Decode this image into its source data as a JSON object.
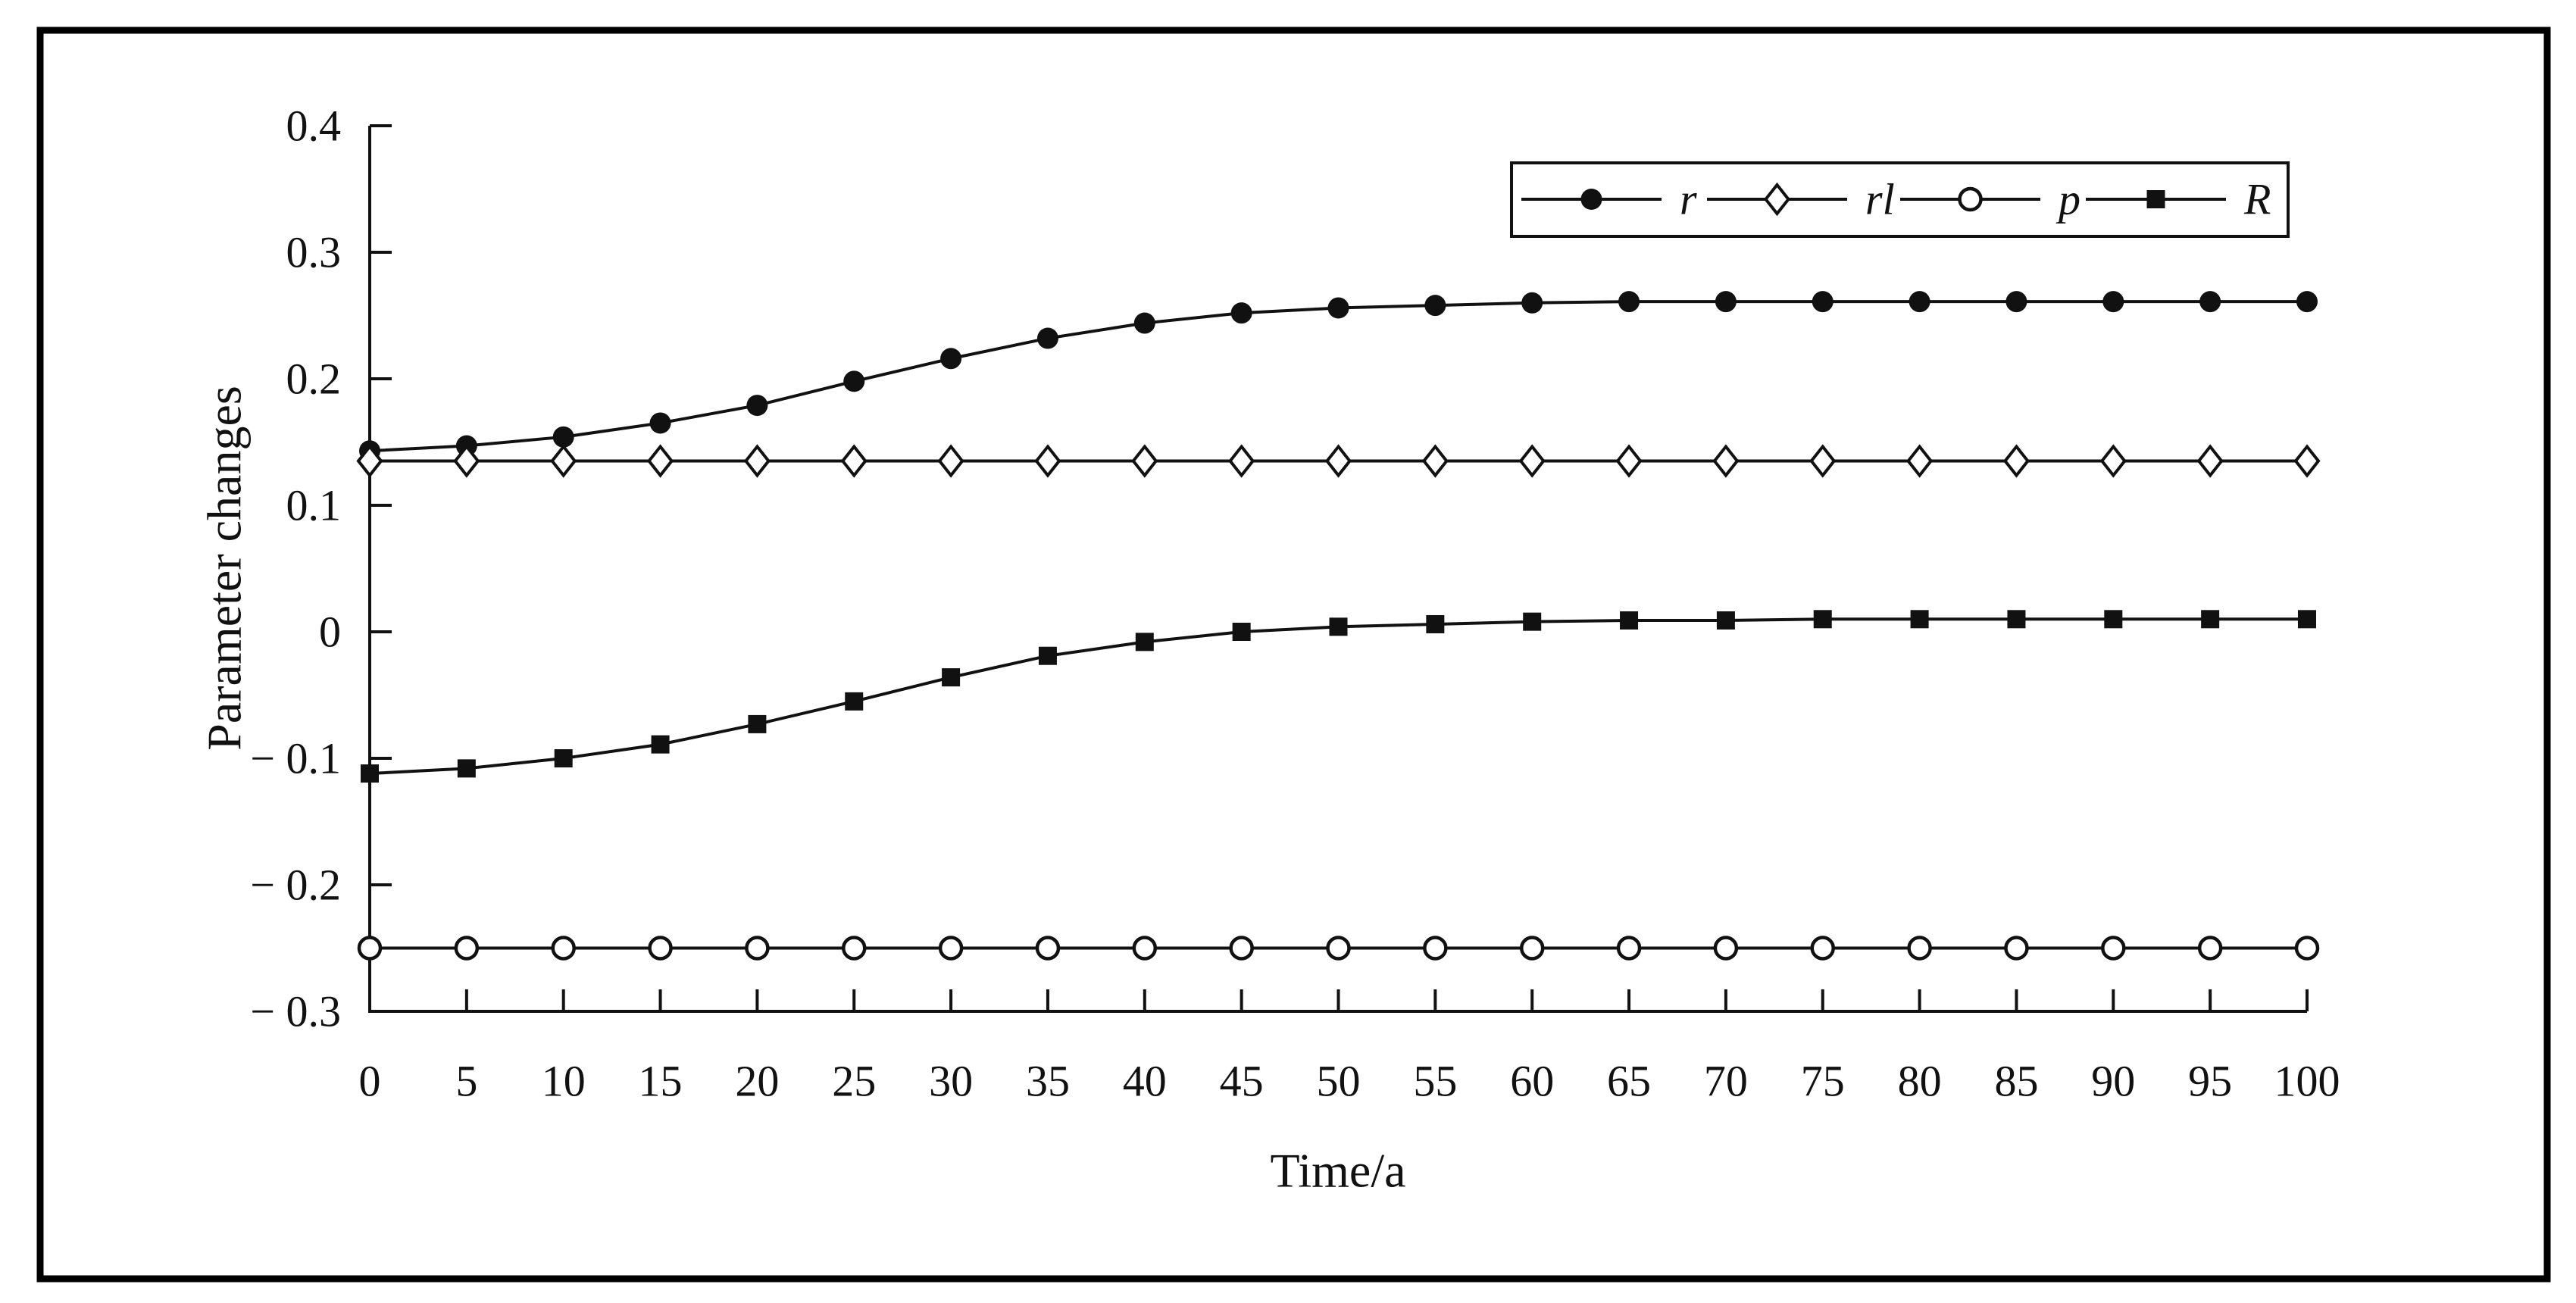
{
  "figure": {
    "background": "#ffffff",
    "border_color": "#000000",
    "ink_color": "#111111"
  },
  "chart_data": {
    "type": "line",
    "title": "",
    "xlabel": "Time/a",
    "ylabel": "Parameter changes",
    "xlim": [
      0,
      100
    ],
    "ylim": [
      -0.3,
      0.4
    ],
    "grid": false,
    "legend_position": "top-right-inside",
    "legend_border": true,
    "x_ticks": [
      0,
      5,
      10,
      15,
      20,
      25,
      30,
      35,
      40,
      45,
      50,
      55,
      60,
      65,
      70,
      75,
      80,
      85,
      90,
      95,
      100
    ],
    "x_tick_labels": [
      "0",
      "5",
      "10",
      "15",
      "20",
      "25",
      "30",
      "35",
      "40",
      "45",
      "50",
      "55",
      "60",
      "65",
      "70",
      "75",
      "80",
      "85",
      "90",
      "95",
      "100"
    ],
    "y_ticks": [
      0.4,
      0.3,
      0.2,
      0.1,
      0,
      -0.1,
      -0.2,
      -0.3
    ],
    "y_tick_labels": [
      "0.4",
      "0.3",
      "0.2",
      "0.1",
      "0",
      "− 0.1",
      "− 0.2",
      "− 0.3"
    ],
    "x": [
      0,
      5,
      10,
      15,
      20,
      25,
      30,
      35,
      40,
      45,
      50,
      55,
      60,
      65,
      70,
      75,
      80,
      85,
      90,
      95,
      100
    ],
    "series": [
      {
        "name": "r",
        "marker": "filled-circle",
        "values": [
          0.143,
          0.147,
          0.154,
          0.165,
          0.179,
          0.198,
          0.216,
          0.232,
          0.244,
          0.252,
          0.256,
          0.258,
          0.26,
          0.261,
          0.261,
          0.261,
          0.261,
          0.261,
          0.261,
          0.261,
          0.261
        ]
      },
      {
        "name": "rl",
        "marker": "open-diamond",
        "values": [
          0.135,
          0.135,
          0.135,
          0.135,
          0.135,
          0.135,
          0.135,
          0.135,
          0.135,
          0.135,
          0.135,
          0.135,
          0.135,
          0.135,
          0.135,
          0.135,
          0.135,
          0.135,
          0.135,
          0.135,
          0.135
        ]
      },
      {
        "name": "p",
        "marker": "open-circle",
        "values": [
          -0.25,
          -0.25,
          -0.25,
          -0.25,
          -0.25,
          -0.25,
          -0.25,
          -0.25,
          -0.25,
          -0.25,
          -0.25,
          -0.25,
          -0.25,
          -0.25,
          -0.25,
          -0.25,
          -0.25,
          -0.25,
          -0.25,
          -0.25,
          -0.25
        ]
      },
      {
        "name": "R",
        "marker": "filled-square",
        "values": [
          -0.112,
          -0.108,
          -0.1,
          -0.089,
          -0.073,
          -0.055,
          -0.036,
          -0.019,
          -0.008,
          0.0,
          0.004,
          0.006,
          0.008,
          0.009,
          0.009,
          0.01,
          0.01,
          0.01,
          0.01,
          0.01,
          0.01
        ]
      }
    ]
  }
}
